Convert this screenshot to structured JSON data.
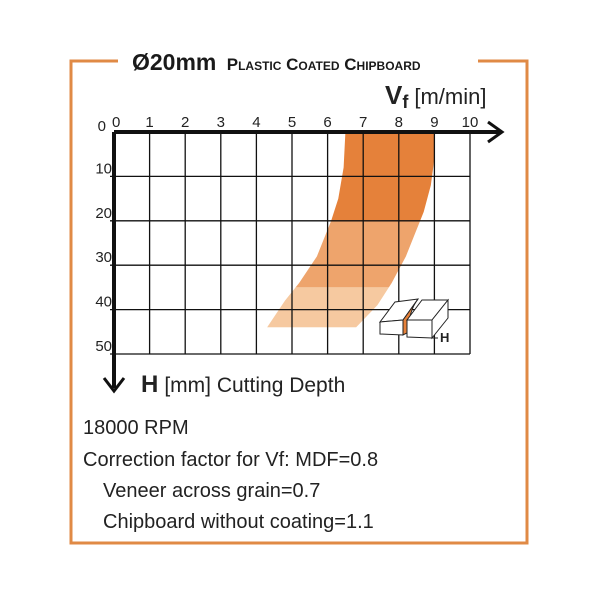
{
  "colors": {
    "frame": "#e08a45",
    "dark": "#e5813a",
    "medium": "#eea46c",
    "light": "#f6c9a0"
  },
  "chart_data": {
    "type": "area",
    "title": {
      "diameter": "Ø20mm",
      "material": "Plastic Coated Chipboard"
    },
    "xlabel": {
      "symbol": "V",
      "sub": "f",
      "unit": "[m/min]"
    },
    "ylabel": {
      "symbol": "H",
      "rest": "[mm] Cutting Depth"
    },
    "xlim": [
      0,
      10
    ],
    "ylim": [
      0,
      50
    ],
    "y_inverted": true,
    "grid": true,
    "x_ticks": [
      "0",
      "1",
      "2",
      "3",
      "4",
      "5",
      "6",
      "7",
      "8",
      "9",
      "10"
    ],
    "y_ticks": [
      "0",
      "10",
      "20",
      "30",
      "40",
      "50"
    ],
    "band": {
      "left_edge": [
        [
          6.5,
          0
        ],
        [
          6.45,
          8
        ],
        [
          6.3,
          15
        ],
        [
          6.1,
          20
        ],
        [
          5.7,
          28
        ],
        [
          5.2,
          34
        ],
        [
          4.8,
          38
        ],
        [
          4.3,
          44
        ]
      ],
      "right_edge": [
        [
          9.0,
          0
        ],
        [
          9.0,
          6
        ],
        [
          8.9,
          12
        ],
        [
          8.7,
          18
        ],
        [
          8.5,
          22
        ],
        [
          8.2,
          28
        ],
        [
          7.8,
          34
        ],
        [
          7.4,
          39
        ],
        [
          6.8,
          44
        ]
      ],
      "zones": [
        {
          "name": "dark",
          "from": 0,
          "to": 20
        },
        {
          "name": "medium",
          "from": 20,
          "to": 35
        },
        {
          "name": "light",
          "from": 35,
          "to": 44
        }
      ]
    },
    "icon_label": "H"
  },
  "notes": {
    "rpm": "18000 RPM",
    "correction": "Correction factor for Vf: MDF=0.8",
    "veneer": "Veneer across grain=0.7",
    "chipboard": "Chipboard without coating=1.1"
  }
}
